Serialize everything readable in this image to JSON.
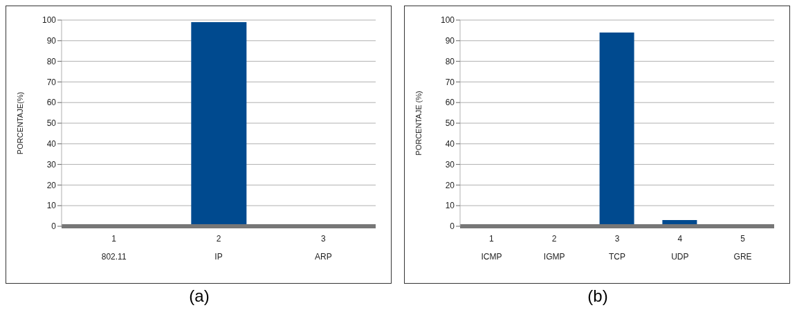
{
  "chart_data": [
    {
      "type": "bar",
      "categories": [
        "1\n802.11",
        "2\nIP",
        "3\nARP"
      ],
      "values": [
        0.5,
        99,
        0.5
      ],
      "color": "#004a8f",
      "ylabel": "PORCENTAJE(%)",
      "ylim": [
        0,
        100
      ],
      "yticks": [
        0,
        10,
        20,
        30,
        40,
        50,
        60,
        70,
        80,
        90,
        100
      ],
      "grid": "y",
      "annotations": [
        "(a)"
      ]
    },
    {
      "type": "bar",
      "categories": [
        "1\nICMP",
        "2\nIGMP",
        "3\nTCP",
        "4\nUDP",
        "5\nGRE"
      ],
      "values": [
        0.5,
        0,
        94,
        3,
        0
      ],
      "color": "#004a8f",
      "ylabel": "PORCENTAJE (%)",
      "ylim": [
        0,
        100
      ],
      "yticks": [
        0,
        10,
        20,
        30,
        40,
        50,
        60,
        70,
        80,
        90,
        100
      ],
      "grid": "y",
      "annotations": [
        "(b)"
      ]
    }
  ]
}
